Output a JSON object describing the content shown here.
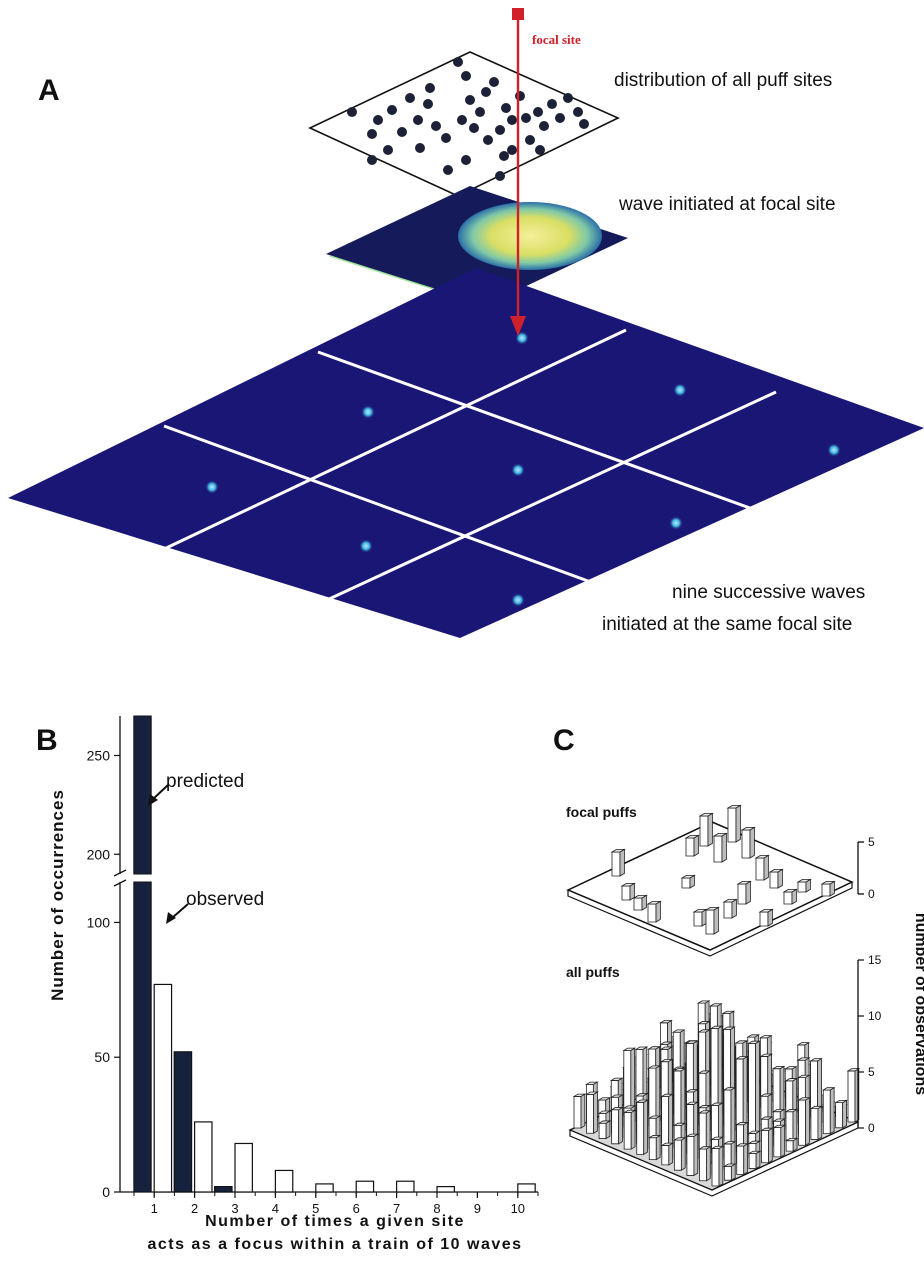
{
  "panels": {
    "a": {
      "letter": "A",
      "focal_label": "focal site",
      "caption_top": "distribution of all puff sites",
      "caption_mid": "wave initiated at focal site",
      "caption_bottom_1": "nine successive waves",
      "caption_bottom_2": "initiated at the same focal site",
      "accent_color": "#d0202a",
      "wave_color": "#1a1676"
    },
    "b": {
      "letter": "B"
    },
    "c": {
      "letter": "C",
      "focal_label": "focal puffs",
      "all_label": "all puffs",
      "ylabel": "number of observations",
      "focal_ticks": [
        "0",
        "5"
      ],
      "all_ticks": [
        "0",
        "5",
        "10",
        "15"
      ]
    }
  },
  "chart_data": [
    {
      "type": "bar",
      "panel": "B",
      "xlabel_line1": "Number of times a given site",
      "xlabel_line2": "acts as a focus within a train of 10 waves",
      "ylabel": "Number of occurrences",
      "categories": [
        "1",
        "2",
        "3",
        "4",
        "5",
        "6",
        "7",
        "8",
        "9",
        "10"
      ],
      "axis_break": true,
      "ylim_lower": [
        0,
        115
      ],
      "ylim_upper": [
        190,
        270
      ],
      "yticks_lower": [
        "0",
        "50",
        "100"
      ],
      "yticks_upper": [
        "200",
        "250"
      ],
      "series": [
        {
          "name": "predicted",
          "color": "#16223d",
          "values": [
            272,
            52,
            2,
            0,
            0,
            0,
            0,
            0,
            0,
            0
          ]
        },
        {
          "name": "observed",
          "color": "#ffffff",
          "values": [
            77,
            26,
            18,
            8,
            3,
            4,
            4,
            2,
            0,
            3
          ]
        }
      ],
      "annotations": [
        "predicted",
        "observed"
      ]
    }
  ]
}
